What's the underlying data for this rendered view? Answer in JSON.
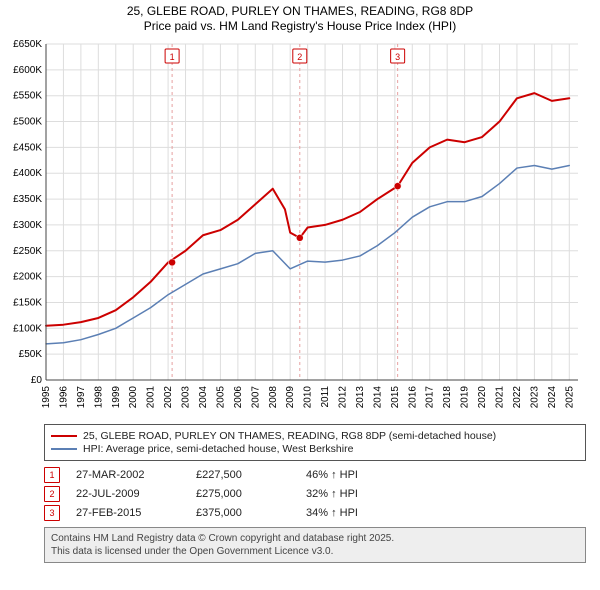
{
  "title": {
    "line1": "25, GLEBE ROAD, PURLEY ON THAMES, READING, RG8 8DP",
    "line2": "Price paid vs. HM Land Registry's House Price Index (HPI)"
  },
  "chart": {
    "type": "line",
    "background_color": "#ffffff",
    "grid_color": "#dddddd",
    "axis_color": "#444444",
    "x_years": [
      1995,
      1996,
      1997,
      1998,
      1999,
      2000,
      2001,
      2002,
      2003,
      2004,
      2005,
      2006,
      2007,
      2008,
      2009,
      2010,
      2011,
      2012,
      2013,
      2014,
      2015,
      2016,
      2017,
      2018,
      2019,
      2020,
      2021,
      2022,
      2023,
      2024,
      2025
    ],
    "xlim": [
      1995,
      2025.5
    ],
    "ylim": [
      0,
      650000
    ],
    "ytick_step": 50000,
    "ytick_labels": [
      "£0",
      "£50K",
      "£100K",
      "£150K",
      "£200K",
      "£250K",
      "£300K",
      "£350K",
      "£400K",
      "£450K",
      "£500K",
      "£550K",
      "£600K",
      "£650K"
    ],
    "series": [
      {
        "name": "price_paid",
        "label": "25, GLEBE ROAD, PURLEY ON THAMES, READING, RG8 8DP (semi-detached house)",
        "color": "#cc0000",
        "line_width": 2,
        "points": [
          [
            1995,
            105000
          ],
          [
            1996,
            107000
          ],
          [
            1997,
            112000
          ],
          [
            1998,
            120000
          ],
          [
            1999,
            135000
          ],
          [
            2000,
            160000
          ],
          [
            2001,
            190000
          ],
          [
            2002,
            227500
          ],
          [
            2003,
            250000
          ],
          [
            2004,
            280000
          ],
          [
            2005,
            290000
          ],
          [
            2006,
            310000
          ],
          [
            2007,
            340000
          ],
          [
            2008,
            370000
          ],
          [
            2008.7,
            330000
          ],
          [
            2009,
            285000
          ],
          [
            2009.55,
            275000
          ],
          [
            2010,
            295000
          ],
          [
            2011,
            300000
          ],
          [
            2012,
            310000
          ],
          [
            2013,
            325000
          ],
          [
            2014,
            350000
          ],
          [
            2015.16,
            375000
          ],
          [
            2016,
            420000
          ],
          [
            2017,
            450000
          ],
          [
            2018,
            465000
          ],
          [
            2019,
            460000
          ],
          [
            2020,
            470000
          ],
          [
            2021,
            500000
          ],
          [
            2022,
            545000
          ],
          [
            2023,
            555000
          ],
          [
            2024,
            540000
          ],
          [
            2025,
            545000
          ]
        ]
      },
      {
        "name": "hpi",
        "label": "HPI: Average price, semi-detached house, West Berkshire",
        "color": "#5b7fb4",
        "line_width": 1.5,
        "points": [
          [
            1995,
            70000
          ],
          [
            1996,
            72000
          ],
          [
            1997,
            78000
          ],
          [
            1998,
            88000
          ],
          [
            1999,
            100000
          ],
          [
            2000,
            120000
          ],
          [
            2001,
            140000
          ],
          [
            2002,
            165000
          ],
          [
            2003,
            185000
          ],
          [
            2004,
            205000
          ],
          [
            2005,
            215000
          ],
          [
            2006,
            225000
          ],
          [
            2007,
            245000
          ],
          [
            2008,
            250000
          ],
          [
            2009,
            215000
          ],
          [
            2010,
            230000
          ],
          [
            2011,
            228000
          ],
          [
            2012,
            232000
          ],
          [
            2013,
            240000
          ],
          [
            2014,
            260000
          ],
          [
            2015,
            285000
          ],
          [
            2016,
            315000
          ],
          [
            2017,
            335000
          ],
          [
            2018,
            345000
          ],
          [
            2019,
            345000
          ],
          [
            2020,
            355000
          ],
          [
            2021,
            380000
          ],
          [
            2022,
            410000
          ],
          [
            2023,
            415000
          ],
          [
            2024,
            408000
          ],
          [
            2025,
            415000
          ]
        ]
      }
    ],
    "events": [
      {
        "index": "1",
        "x": 2002.23,
        "date": "27-MAR-2002",
        "price": "£227,500",
        "hpi_delta": "46% ↑ HPI",
        "marker_y": 227500
      },
      {
        "index": "2",
        "x": 2009.55,
        "date": "22-JUL-2009",
        "price": "£275,000",
        "hpi_delta": "32% ↑ HPI",
        "marker_y": 275000
      },
      {
        "index": "3",
        "x": 2015.16,
        "date": "27-FEB-2015",
        "price": "£375,000",
        "hpi_delta": "34% ↑ HPI",
        "marker_y": 375000
      }
    ],
    "event_line_color": "#e6a0a0",
    "event_box_border": "#cc0000",
    "event_box_text": "#cc0000",
    "marker_fill": "#cc0000",
    "marker_radius": 3.5
  },
  "legend": {
    "items": [
      {
        "color": "#cc0000",
        "label_key": "chart.series.0.label"
      },
      {
        "color": "#5b7fb4",
        "label_key": "chart.series.1.label"
      }
    ]
  },
  "attribution": {
    "line1": "Contains HM Land Registry data © Crown copyright and database right 2025.",
    "line2": "This data is licensed under the Open Government Licence v3.0."
  }
}
